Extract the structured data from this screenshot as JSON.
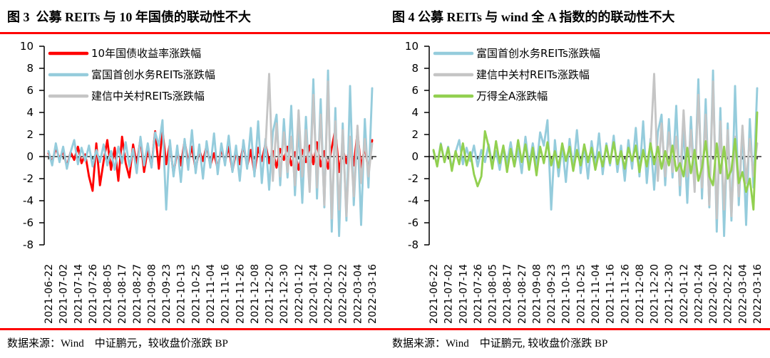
{
  "panels": [
    {
      "title": "图 3  公募 REITs 与 10 年国债的联动性不大",
      "source": "数据来源：Wind　中证鹏元，较收盘价涨跌 BP"
    },
    {
      "title": "图 4 公募 REITs 与 wind 全 A 指数的的联动性不大",
      "source": "数据来源：Wind　中证鹏元, 较收盘价涨跌 BP"
    }
  ],
  "accent_rule_color": "#fe0000",
  "chart_data": [
    {
      "type": "line",
      "title": "图 3 公募 REITs 与 10 年国债的联动性不大",
      "ylim": [
        -8,
        10
      ],
      "y_ticks": [
        10,
        8,
        6,
        4,
        2,
        0,
        -2,
        -4,
        -6,
        -8
      ],
      "grid": false,
      "legend_position": "top-left-inside",
      "x_axis_at_zero": true,
      "points_per_tick": 4,
      "x_tick_labels": [
        "2021-06-22",
        "2021-07-02",
        "2021-07-14",
        "2021-07-26",
        "2021-08-05",
        "2021-08-17",
        "2021-08-27",
        "2021-09-08",
        "2021-09-23",
        "2021-10-13",
        "2021-10-25",
        "2021-11-04",
        "2021-11-16",
        "2021-11-26",
        "2021-12-08",
        "2021-12-20",
        "2021-12-30",
        "2022-01-12",
        "2022-01-24",
        "2022-02-10",
        "2022-02-22",
        "2022-03-04",
        "2022-03-16"
      ],
      "series": [
        {
          "name": "10年国债收益率涨跌幅",
          "color": "#ff0000",
          "values": [
            0.3,
            -0.5,
            0.8,
            -0.2,
            0.5,
            -0.9,
            0.4,
            -0.3,
            0.9,
            -0.6,
            0.2,
            -1.8,
            -3.1,
            1.2,
            -2.6,
            -0.4,
            1.5,
            -1.2,
            0.8,
            -2.2,
            1.8,
            -0.6,
            -1.9,
            1.1,
            -0.8,
            1.6,
            -1.4,
            0.7,
            -0.9,
            2.3,
            -1.1,
            2.4,
            -0.7,
            1.2,
            -1.6,
            0.5,
            -0.8,
            1.4,
            -0.5,
            0.9,
            -1.2,
            0.6,
            -0.4,
            1.0,
            -0.8,
            0.3,
            -1.1,
            0.7,
            -0.5,
            0.9,
            -1.3,
            0.4,
            -0.7,
            1.1,
            -0.9,
            0.6,
            -1.5,
            0.8,
            -0.4,
            1.2,
            -0.6,
            0.5,
            -1.0,
            0.7,
            -0.3,
            0.9,
            -0.8,
            0.4,
            -1.2,
            0.6,
            -0.5,
            1.0,
            -0.7,
            1.3,
            -0.9,
            0.5,
            -1.1,
            0.8,
            2.5,
            -1.4,
            0.7,
            -0.6,
            1.1,
            -0.8,
            2.2,
            -1.0,
            0.9,
            -1.3,
            1.5
          ]
        },
        {
          "name": "富国首创水务REITs涨跌幅",
          "color": "#95ccdc",
          "values": [
            0.5,
            -0.8,
            1.2,
            -0.5,
            0.9,
            -1.1,
            0.4,
            1.5,
            -0.7,
            0.8,
            -0.4,
            1.0,
            -0.9,
            0.6,
            -0.5,
            1.1,
            -0.8,
            0.5,
            -1.2,
            0.9,
            -0.6,
            1.3,
            -0.9,
            0.7,
            -1.5,
            1.8,
            -0.8,
            1.2,
            -1.0,
            2.2,
            1.0,
            3.3,
            -4.8,
            1.5,
            -1.8,
            1.0,
            -2.3,
            1.6,
            -1.2,
            2.4,
            -1.5,
            1.1,
            -2.0,
            1.4,
            -1.0,
            2.1,
            -1.6,
            1.2,
            -0.8,
            1.9,
            -1.4,
            1.0,
            -2.2,
            1.5,
            -1.1,
            2.6,
            -1.8,
            3.2,
            -2.4,
            1.6,
            -3.0,
            2.2,
            3.8,
            -2.6,
            3.4,
            -1.9,
            4.6,
            -3.5,
            2.8,
            -4.2,
            3.6,
            -2.8,
            7.0,
            -3.8,
            5.2,
            -4.6,
            7.8,
            -6.8,
            4.4,
            -7.2,
            3.0,
            -5.8,
            6.4,
            -4.4,
            2.6,
            -6.2,
            3.4,
            -2.8,
            6.2
          ]
        },
        {
          "name": "建信中关村REITs涨跌幅",
          "color": "#c5c5c5",
          "values": [
            null,
            null,
            null,
            null,
            null,
            null,
            null,
            null,
            null,
            null,
            null,
            null,
            null,
            null,
            null,
            null,
            null,
            null,
            null,
            null,
            null,
            null,
            null,
            null,
            null,
            null,
            null,
            null,
            null,
            null,
            null,
            null,
            null,
            null,
            null,
            null,
            null,
            null,
            null,
            null,
            null,
            null,
            null,
            null,
            null,
            null,
            null,
            null,
            null,
            null,
            null,
            null,
            null,
            null,
            null,
            null,
            null,
            null,
            null,
            0.8,
            7.5,
            -2.2,
            3.0,
            -1.8,
            2.2,
            -1.4,
            1.8,
            -2.6,
            4.2,
            -1.8,
            2.4,
            -3.2,
            5.6,
            -2.8,
            3.8,
            -4.4,
            6.8,
            -5.6,
            3.2,
            -4.8,
            2.4,
            -5.4,
            1.8,
            -3.6,
            2.8,
            -2.4,
            1.6,
            -1.8,
            1.2
          ]
        }
      ]
    },
    {
      "type": "line",
      "title": "图 4 公募 REITs 与 wind 全 A 指数的的联动性不大",
      "ylim": [
        -8,
        10
      ],
      "y_ticks": [
        10,
        8,
        6,
        4,
        2,
        0,
        -2,
        -4,
        -6,
        -8
      ],
      "grid": false,
      "legend_position": "top-left-inside",
      "x_axis_at_zero": true,
      "points_per_tick": 4,
      "x_tick_labels": [
        "2021-06-22",
        "2021-07-02",
        "2021-07-14",
        "2021-07-26",
        "2021-08-05",
        "2021-08-17",
        "2021-08-27",
        "2021-09-08",
        "2021-09-23",
        "2021-10-13",
        "2021-10-25",
        "2021-11-04",
        "2021-11-16",
        "2021-11-26",
        "2021-12-08",
        "2021-12-20",
        "2021-12-30",
        "2022-01-12",
        "2022-01-24",
        "2022-02-10",
        "2022-02-22",
        "2022-03-04",
        "2022-03-16"
      ],
      "series": [
        {
          "name": "富国首创水务REITs涨跌幅",
          "color": "#95ccdc",
          "values": [
            0.5,
            -0.8,
            1.2,
            -0.5,
            0.9,
            -1.1,
            0.4,
            1.5,
            -0.7,
            0.8,
            -0.4,
            1.0,
            -0.9,
            0.6,
            -0.5,
            1.1,
            -0.8,
            0.5,
            -1.2,
            0.9,
            -0.6,
            1.3,
            -0.9,
            0.7,
            -1.5,
            1.8,
            -0.8,
            1.2,
            -1.0,
            2.2,
            1.0,
            3.3,
            -4.8,
            1.5,
            -1.8,
            1.0,
            -2.3,
            1.6,
            -1.2,
            2.4,
            -1.5,
            1.1,
            -2.0,
            1.4,
            -1.0,
            2.1,
            -1.6,
            1.2,
            -0.8,
            1.9,
            -1.4,
            1.0,
            -2.2,
            1.5,
            -1.1,
            2.6,
            -1.8,
            3.2,
            -2.4,
            1.6,
            -3.0,
            2.2,
            3.8,
            -2.6,
            3.4,
            -1.9,
            4.6,
            -3.5,
            2.8,
            -4.2,
            3.6,
            -2.8,
            7.0,
            -3.8,
            5.2,
            -4.6,
            7.8,
            -6.8,
            4.4,
            -7.2,
            3.0,
            -5.8,
            6.4,
            -4.4,
            2.6,
            -6.2,
            3.4,
            -2.8,
            6.2
          ]
        },
        {
          "name": "建信中关村REITs涨跌幅",
          "color": "#c5c5c5",
          "values": [
            null,
            null,
            null,
            null,
            null,
            null,
            null,
            null,
            null,
            null,
            null,
            null,
            null,
            null,
            null,
            null,
            null,
            null,
            null,
            null,
            null,
            null,
            null,
            null,
            null,
            null,
            null,
            null,
            null,
            null,
            null,
            null,
            null,
            null,
            null,
            null,
            null,
            null,
            null,
            null,
            null,
            null,
            null,
            null,
            null,
            null,
            null,
            null,
            null,
            null,
            null,
            null,
            null,
            null,
            null,
            null,
            null,
            null,
            null,
            0.8,
            7.5,
            -2.2,
            3.0,
            -1.8,
            2.2,
            -1.4,
            1.8,
            -2.6,
            4.2,
            -1.8,
            2.4,
            -3.2,
            5.6,
            -2.8,
            3.8,
            -4.4,
            6.8,
            -5.6,
            3.2,
            -4.8,
            2.4,
            -5.4,
            1.8,
            -3.6,
            2.8,
            -2.4,
            1.6,
            -1.8,
            1.2
          ]
        },
        {
          "name": "万得全A涨跌幅",
          "color": "#92d050",
          "values": [
            0.6,
            -0.9,
            1.1,
            -0.5,
            0.8,
            -1.3,
            0.5,
            -0.7,
            1.2,
            -0.8,
            0.4,
            -1.6,
            -2.7,
            -1.8,
            2.3,
            0.9,
            -1.1,
            1.4,
            -0.6,
            1.0,
            -1.4,
            0.7,
            -0.9,
            1.5,
            -0.5,
            1.1,
            -1.2,
            0.8,
            -1.7,
            0.9,
            -0.6,
            1.3,
            -0.8,
            0.5,
            -1.0,
            1.2,
            -0.4,
            0.9,
            -1.3,
            0.6,
            -0.8,
            1.1,
            -0.5,
            0.8,
            -1.2,
            0.4,
            -0.9,
            1.0,
            -0.6,
            1.3,
            -0.7,
            0.5,
            -1.1,
            0.8,
            -0.4,
            1.0,
            -1.4,
            0.6,
            -0.9,
            1.2,
            -0.7,
            0.9,
            -1.1,
            0.5,
            -0.8,
            1.0,
            -1.3,
            -0.6,
            -1.8,
            0.8,
            -1.5,
            0.6,
            -2.2,
            -1.0,
            1.4,
            -1.8,
            -2.6,
            1.2,
            -1.5,
            0.9,
            -2.0,
            -1.2,
            1.6,
            -2.4,
            -1.4,
            -3.2,
            -2.0,
            -4.8,
            4.0
          ]
        }
      ]
    }
  ]
}
